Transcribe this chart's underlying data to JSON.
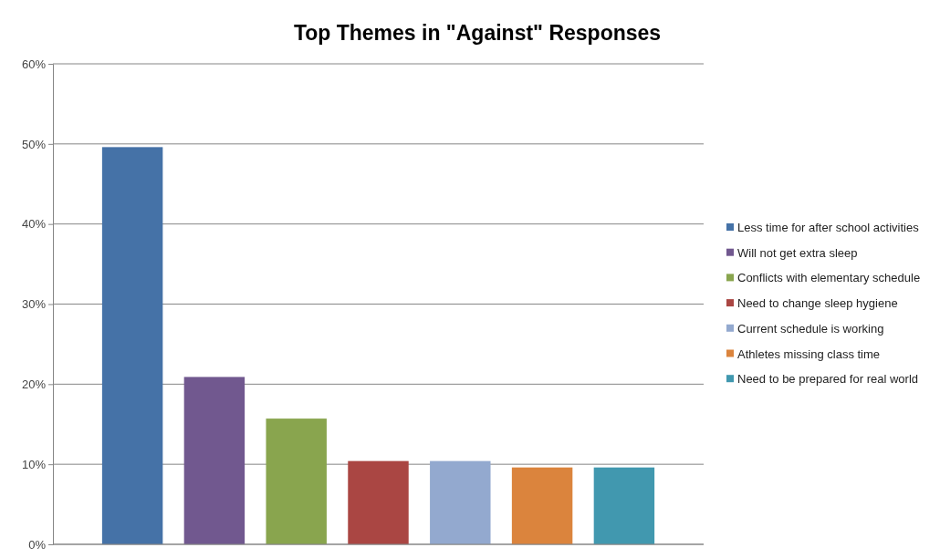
{
  "chart_data": {
    "type": "bar",
    "title": "Top Themes in \"Against\" Responses",
    "categories": [
      null
    ],
    "series": [
      {
        "name": "Less time for after school activities",
        "color": "#4572a7",
        "values": [
          49.6
        ]
      },
      {
        "name": "Will not get extra sleep",
        "color": "#71588f",
        "values": [
          20.9
        ]
      },
      {
        "name": "Conflicts with elementary schedule",
        "color": "#89a54e",
        "values": [
          15.7
        ]
      },
      {
        "name": "Need to change sleep hygiene",
        "color": "#aa4643",
        "values": [
          10.4
        ]
      },
      {
        "name": "Current schedule is working",
        "color": "#93a9cf",
        "values": [
          10.4
        ]
      },
      {
        "name": "Athletes missing class time",
        "color": "#db843d",
        "values": [
          9.6
        ]
      },
      {
        "name": "Need to be prepared for real world",
        "color": "#4198af",
        "values": [
          9.6
        ]
      }
    ],
    "ylim": [
      0,
      60
    ],
    "yticks": [
      {
        "value": 0,
        "label": "0%"
      },
      {
        "value": 10,
        "label": "10%"
      },
      {
        "value": 20,
        "label": "20%"
      },
      {
        "value": 30,
        "label": "30%"
      },
      {
        "value": 40,
        "label": "40%"
      },
      {
        "value": 50,
        "label": "50%"
      },
      {
        "value": 60,
        "label": "60%"
      }
    ],
    "grid": "y",
    "legend": "right"
  }
}
